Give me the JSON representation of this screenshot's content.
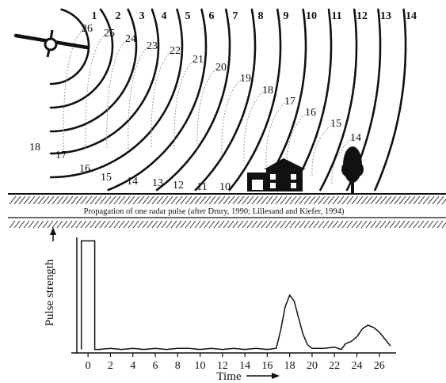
{
  "caption": "Propagation of one radar pulse (after Drury, 1990; Lillesand and Kiefer, 1994)",
  "wavefront_labels": [
    "1",
    "2",
    "3",
    "4",
    "5",
    "6",
    "7",
    "8",
    "9",
    "10",
    "11",
    "12",
    "13",
    "14"
  ],
  "echo_labels": [
    "26",
    "25",
    "24",
    "23",
    "22",
    "21",
    "20",
    "19",
    "18",
    "17",
    "16",
    "15",
    "14"
  ],
  "ground_labels": [
    "18",
    "17",
    "16",
    "15",
    "14",
    "13",
    "12",
    "11",
    "10"
  ],
  "chart_data": {
    "type": "line",
    "xlabel": "Time",
    "ylabel": "Pulse strength",
    "x_ticks": [
      "0",
      "2",
      "4",
      "6",
      "8",
      "10",
      "12",
      "14",
      "16",
      "18",
      "20",
      "22",
      "24",
      "26"
    ],
    "xlim": [
      -1,
      27.5
    ],
    "ylim": [
      0,
      1
    ],
    "series": [
      {
        "x": [
          -0.6,
          -0.6,
          0.6,
          0.6,
          1,
          2,
          3,
          4,
          5,
          6,
          7,
          8,
          9,
          10,
          11,
          12,
          13,
          14,
          15,
          16,
          16.8,
          17.2,
          17.6,
          18,
          18.4,
          18.8,
          19.2,
          19.6,
          20,
          21,
          22,
          22.6,
          23,
          23.5,
          24,
          24.5,
          25,
          25.5,
          26,
          26.5,
          27
        ],
        "y": [
          0.03,
          0.97,
          0.97,
          0.03,
          0.03,
          0.04,
          0.03,
          0.04,
          0.03,
          0.04,
          0.03,
          0.04,
          0.04,
          0.03,
          0.04,
          0.03,
          0.04,
          0.03,
          0.04,
          0.03,
          0.04,
          0.2,
          0.4,
          0.5,
          0.45,
          0.3,
          0.16,
          0.07,
          0.04,
          0.04,
          0.05,
          0.03,
          0.08,
          0.1,
          0.14,
          0.21,
          0.24,
          0.22,
          0.18,
          0.12,
          0.06
        ]
      }
    ]
  }
}
